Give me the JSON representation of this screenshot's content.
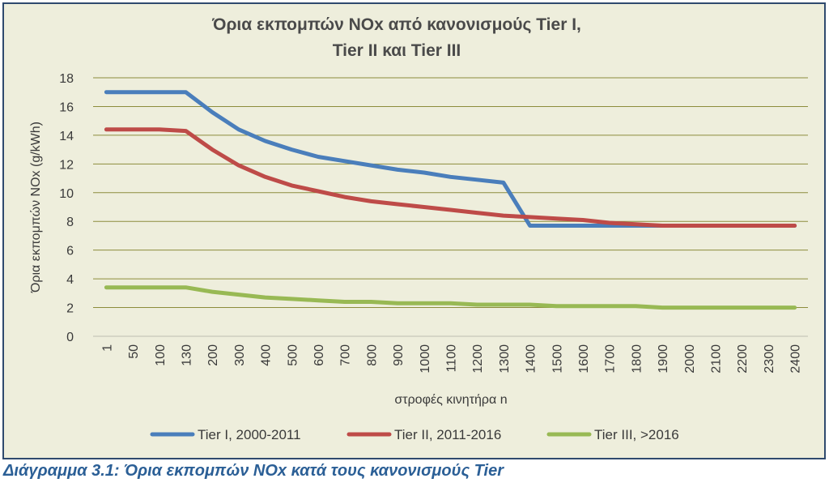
{
  "chart_data": {
    "type": "line",
    "title_lines": [
      "Όρια εκπομπών NOx από κανονισμούς Tier I,",
      "Tier II και Tier III"
    ],
    "xlabel": "στροφές κινητήρα n",
    "ylabel": "Όρια εκπομπών NOx (g/kWh)",
    "categories": [
      "1",
      "50",
      "100",
      "130",
      "200",
      "300",
      "400",
      "500",
      "600",
      "700",
      "800",
      "900",
      "1000",
      "1100",
      "1200",
      "1300",
      "1400",
      "1500",
      "1600",
      "1700",
      "1800",
      "1900",
      "2000",
      "2100",
      "2200",
      "2300",
      "2400"
    ],
    "ylim": [
      0,
      18
    ],
    "yticks": [
      0,
      2,
      4,
      6,
      8,
      10,
      12,
      14,
      16,
      18
    ],
    "grid": true,
    "legend_position": "bottom",
    "series": [
      {
        "name": "Tier I, 2000-2011",
        "color": "#4a7ebb",
        "values": [
          17.0,
          17.0,
          17.0,
          17.0,
          15.6,
          14.4,
          13.6,
          13.0,
          12.5,
          12.2,
          11.9,
          11.6,
          11.4,
          11.1,
          10.9,
          10.7,
          7.7,
          7.7,
          7.7,
          7.7,
          7.7,
          7.7,
          7.7,
          7.7,
          7.7,
          7.7,
          7.7
        ]
      },
      {
        "name": "Tier II, 2011-2016",
        "color": "#be4b48",
        "values": [
          14.4,
          14.4,
          14.4,
          14.3,
          13.0,
          11.9,
          11.1,
          10.5,
          10.1,
          9.7,
          9.4,
          9.2,
          9.0,
          8.8,
          8.6,
          8.4,
          8.3,
          8.2,
          8.1,
          7.9,
          7.8,
          7.7,
          7.7,
          7.7,
          7.7,
          7.7,
          7.7
        ]
      },
      {
        "name": "Tier III, >2016",
        "color": "#98b954",
        "values": [
          3.4,
          3.4,
          3.4,
          3.4,
          3.1,
          2.9,
          2.7,
          2.6,
          2.5,
          2.4,
          2.4,
          2.3,
          2.3,
          2.3,
          2.2,
          2.2,
          2.2,
          2.1,
          2.1,
          2.1,
          2.1,
          2.0,
          2.0,
          2.0,
          2.0,
          2.0,
          2.0
        ]
      }
    ]
  },
  "caption": "Διάγραμμα 3.1: Όρια εκπομπών NOx κατά τους κανονισμούς Tier"
}
